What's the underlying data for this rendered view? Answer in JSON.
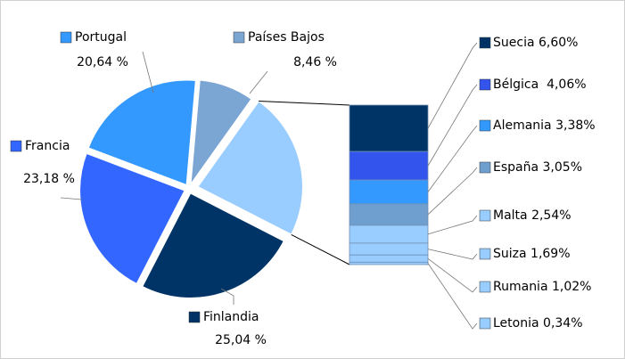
{
  "chart_data": {
    "type": "pie-of-bar",
    "pie": {
      "categories": [
        "Países Bajos",
        "Finlandia",
        "Francia",
        "Portugal"
      ],
      "values": [
        8.46,
        25.04,
        23.18,
        20.64
      ],
      "value_labels": [
        "8,46 %",
        "25,04 %",
        "23,18 %",
        "20,64 %"
      ],
      "colors": [
        "#7ba6d4",
        "#003366",
        "#3366ff",
        "#3399ff"
      ]
    },
    "bar": {
      "categories": [
        "Suecia",
        "Bélgica",
        "Alemania",
        "España",
        "Malta",
        "Suiza",
        "Rumania",
        "Letonia"
      ],
      "values": [
        6.6,
        4.06,
        3.38,
        3.05,
        2.54,
        1.69,
        1.02,
        0.34
      ],
      "value_labels": [
        "6,60%",
        " 4,06%",
        "3,38%",
        "3,05%",
        "2,54%",
        "1,69%",
        "1,02%",
        "0,34%"
      ],
      "colors": [
        "#003366",
        "#3355ee",
        "#3399ff",
        "#6f9fcf",
        "#99ccff",
        "#99ccff",
        "#99ccff",
        "#99ccff"
      ]
    }
  }
}
